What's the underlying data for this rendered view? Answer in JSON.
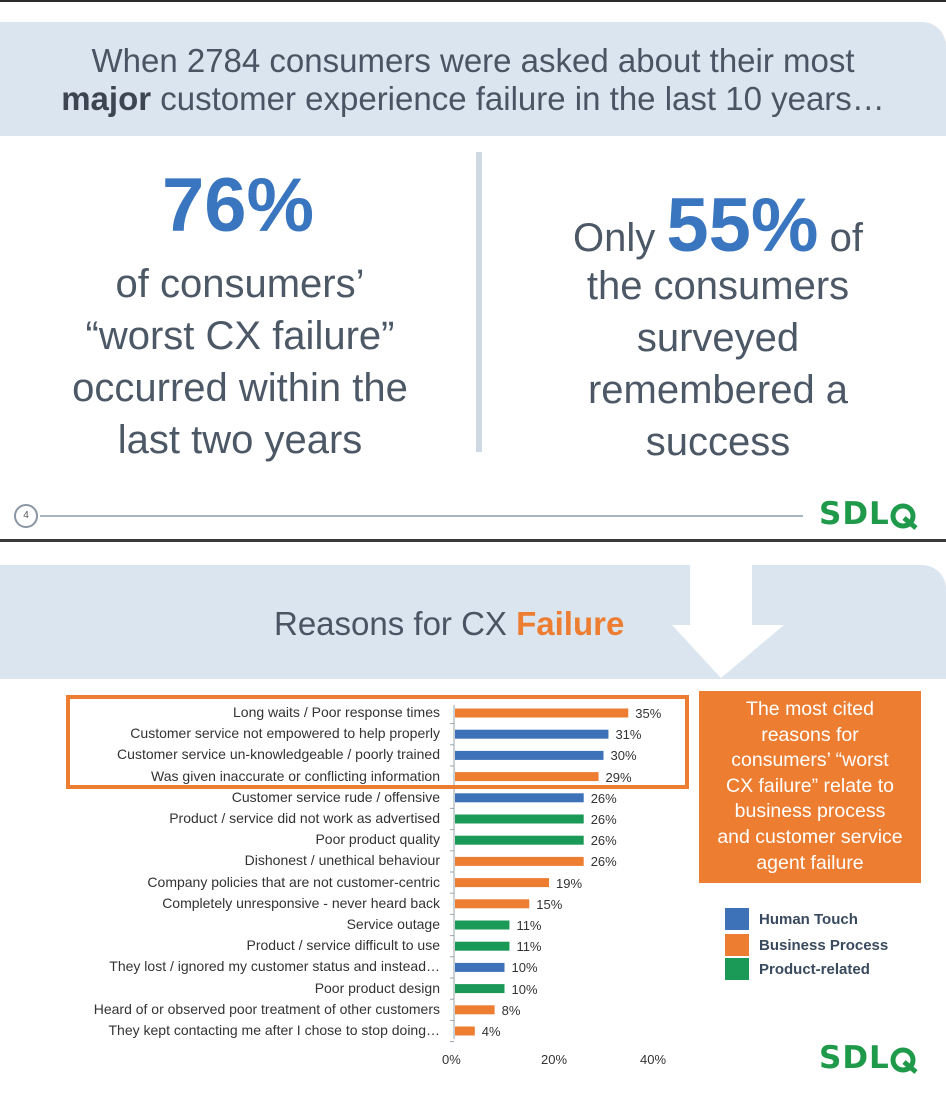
{
  "top_banner": {
    "line1": "When 2784 consumers were asked about their most",
    "line2_bold": "major",
    "line2_rest": " customer experience failure in the last 10 years…"
  },
  "stat_left": {
    "number": "76%",
    "lines": [
      "of consumers’",
      "“worst CX failure”",
      "occurred within the",
      "last two years"
    ]
  },
  "stat_right": {
    "prefix": "Only ",
    "number": "55%",
    "suffix": " of",
    "lines": [
      "the consumers",
      "surveyed",
      "remembered a",
      "success"
    ]
  },
  "slide_number": "4",
  "logo_text": "SDL",
  "reasons_title": {
    "plain": "Reasons for CX ",
    "highlight": "Failure"
  },
  "callout": {
    "lines": [
      "The most cited",
      "reasons for",
      "consumers’ “worst",
      "CX failure” relate to",
      "business process",
      "and customer service",
      "agent failure"
    ]
  },
  "colors": {
    "human": "#3e72b8",
    "business": "#ed7d31",
    "product": "#1b9957",
    "accent": "#3a76bf"
  },
  "legend": [
    {
      "name": "Human Touch",
      "color": "#3e72b8"
    },
    {
      "name": "Business Process",
      "color": "#ed7d31"
    },
    {
      "name": "Product-related",
      "color": "#1b9957"
    }
  ],
  "chart_data": {
    "type": "bar",
    "orientation": "horizontal",
    "categories": [
      "Long waits / Poor response times",
      "Customer service not empowered to help properly",
      "Customer service un-knowledgeable / poorly trained",
      "Was given inaccurate or conflicting information",
      "Customer service rude / offensive",
      "Product / service did not work as advertised",
      "Poor product quality",
      "Dishonest / unethical behaviour",
      "Company policies that are not customer-centric",
      "Completely unresponsive - never heard back",
      "Service outage",
      "Product / service difficult to use",
      "They lost / ignored my customer status and instead…",
      "Poor product design",
      "Heard of or observed poor treatment of other customers",
      "They kept contacting me after I chose to stop doing…"
    ],
    "values": [
      35,
      31,
      30,
      29,
      26,
      26,
      26,
      26,
      19,
      15,
      11,
      11,
      10,
      10,
      8,
      4
    ],
    "value_labels": [
      "35%",
      "31%",
      "30%",
      "29%",
      "26%",
      "26%",
      "26%",
      "26%",
      "19%",
      "15%",
      "11%",
      "11%",
      "10%",
      "10%",
      "8%",
      "4%"
    ],
    "groups": [
      "Business Process",
      "Human Touch",
      "Human Touch",
      "Business Process",
      "Human Touch",
      "Product-related",
      "Product-related",
      "Business Process",
      "Business Process",
      "Business Process",
      "Product-related",
      "Product-related",
      "Human Touch",
      "Product-related",
      "Business Process",
      "Business Process"
    ],
    "xlim": [
      0,
      40
    ],
    "xticks": [
      0,
      20,
      40
    ],
    "xtick_labels": [
      "0%",
      "20%",
      "40%"
    ],
    "legend_position": "right"
  }
}
